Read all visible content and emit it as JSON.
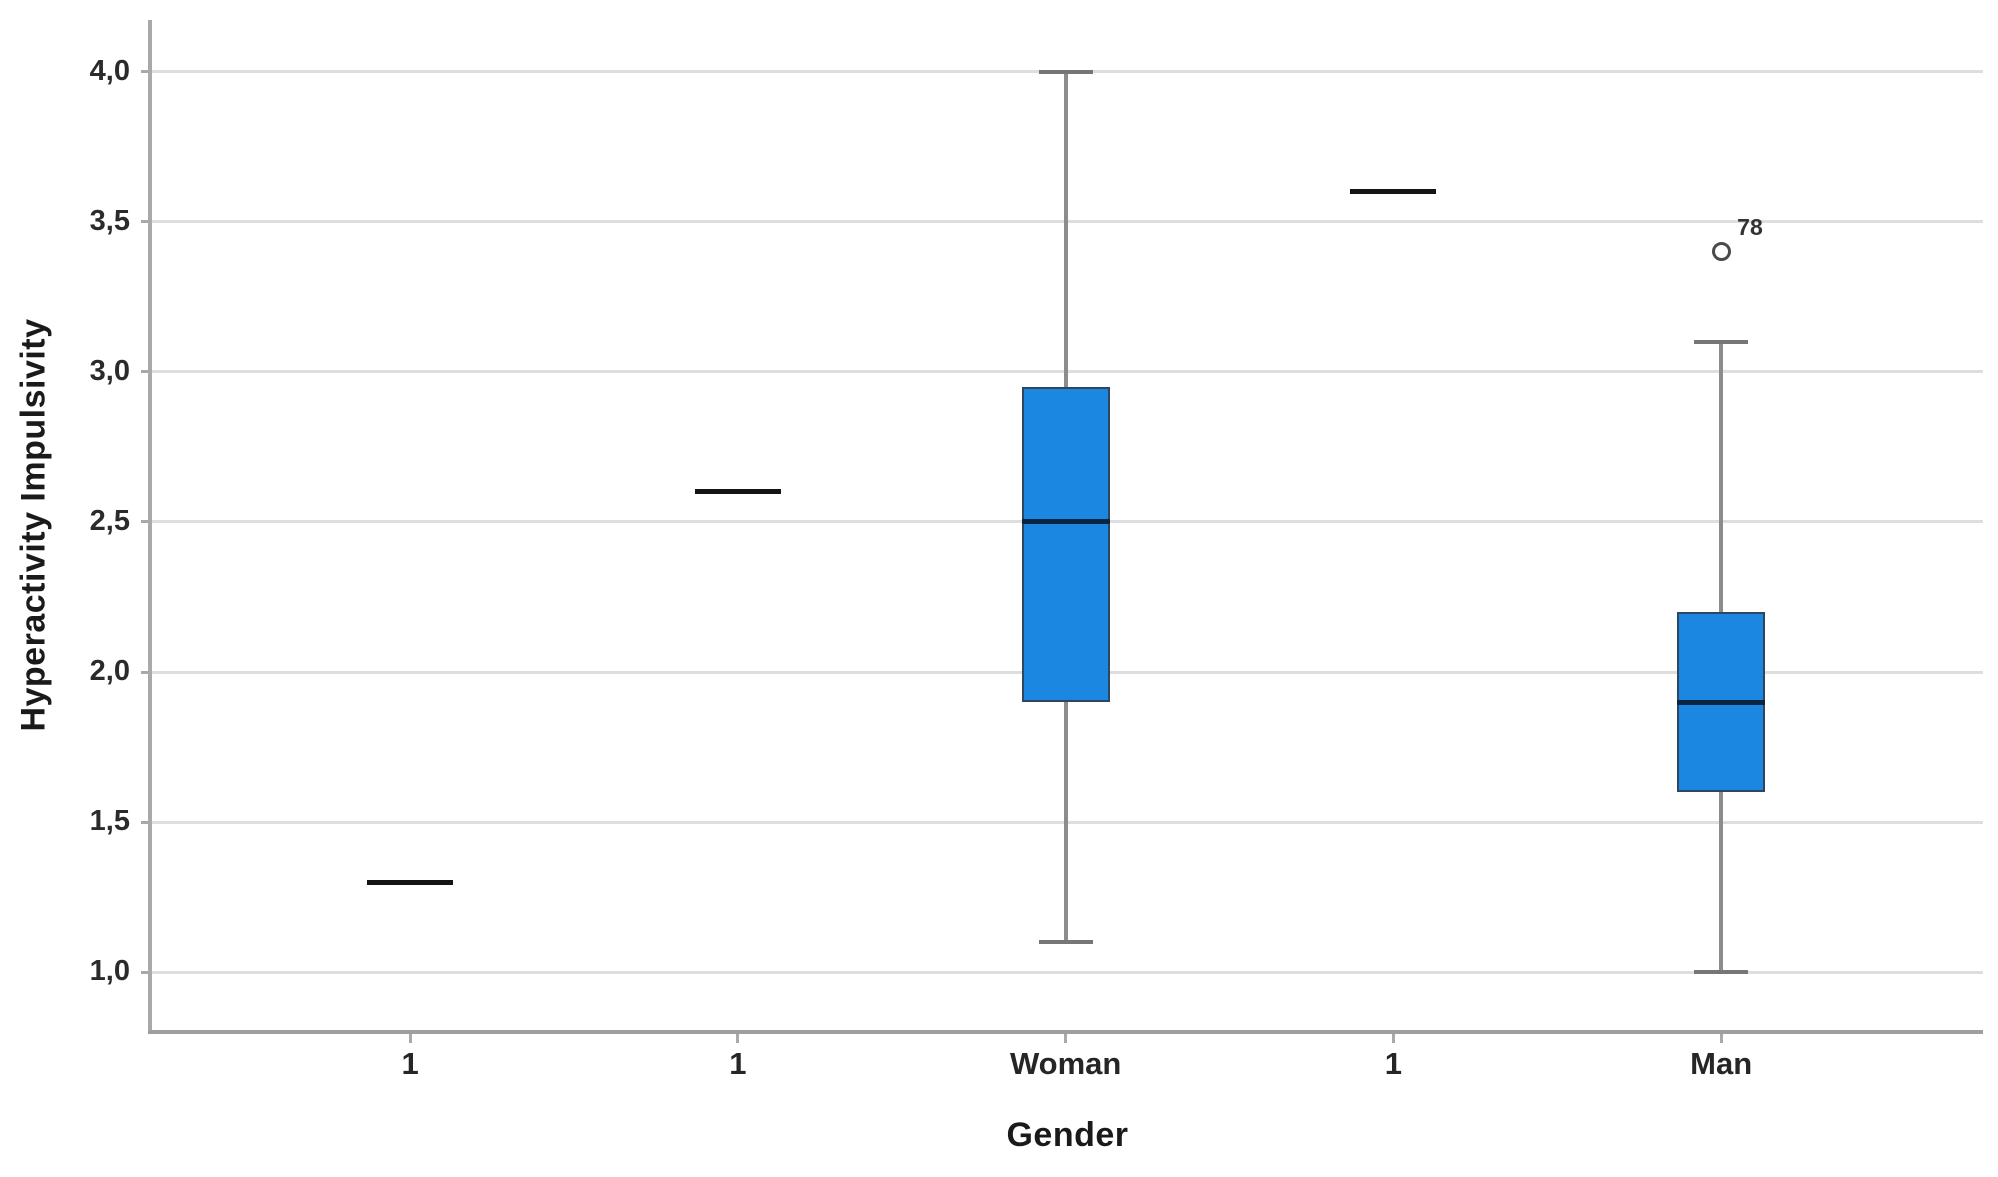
{
  "chart_data": {
    "type": "boxplot",
    "title": "",
    "xlabel": "Gender",
    "ylabel": "Hyperactivity Impulsivity",
    "ylim": [
      0.807,
      4.173
    ],
    "yticks": [
      1.0,
      1.5,
      2.0,
      2.5,
      3.0,
      3.5,
      4.0
    ],
    "ytick_labels": [
      "1,0",
      "1,5",
      "2,0",
      "2,5",
      "3,0",
      "3,5",
      "4,0"
    ],
    "grid": true,
    "legend": "none",
    "decimal_separator": ",",
    "categories": [
      "1",
      "1",
      "Woman",
      "1",
      "Man"
    ],
    "series": [
      {
        "category": "1",
        "type": "single",
        "value": 1.3
      },
      {
        "category": "1",
        "type": "single",
        "value": 2.6
      },
      {
        "category": "Woman",
        "type": "box",
        "whisker_low": 1.1,
        "q1": 1.9,
        "median": 2.5,
        "q3": 2.95,
        "whisker_high": 4.0,
        "outliers": []
      },
      {
        "category": "1",
        "type": "single",
        "value": 3.6
      },
      {
        "category": "Man",
        "type": "box",
        "whisker_low": 1.0,
        "q1": 1.6,
        "median": 1.9,
        "q3": 2.2,
        "whisker_high": 3.1,
        "outliers": [
          {
            "value": 3.4,
            "label": "78"
          }
        ]
      }
    ],
    "colors": {
      "box_fill": "#1b87e0",
      "box_border": "#2e4660",
      "median": "#0a2540",
      "single_value_line": "#141414",
      "whisker": "#8c8c8c",
      "gridline": "#dedede",
      "axis": "#a9a9a9",
      "text": "#262626",
      "background": "#ffffff"
    }
  }
}
